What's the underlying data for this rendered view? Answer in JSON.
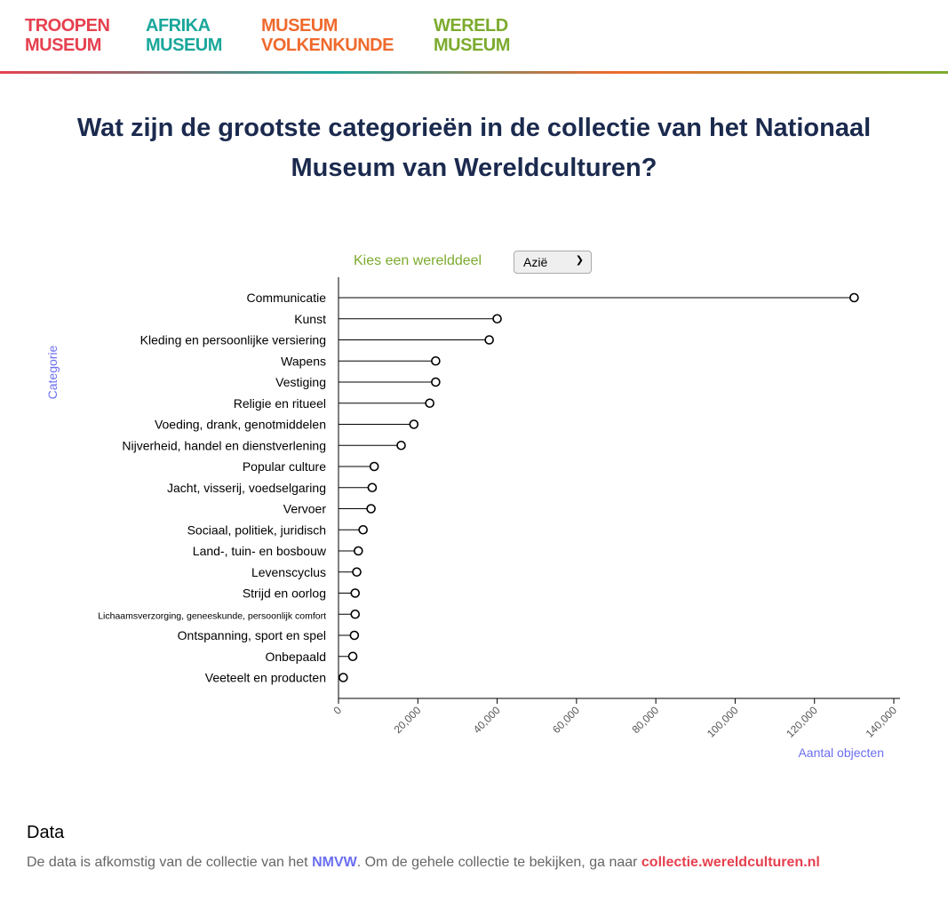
{
  "logos": [
    {
      "line1": "TROOPEN",
      "line2": "MUSEUM",
      "color": "#e6404f"
    },
    {
      "line1": "AFRIKA",
      "line2": "MUSEUM",
      "color": "#1aa79b"
    },
    {
      "line1": "MUSEUM",
      "line2": "VOLKENKUNDE",
      "color": "#ef6a2d"
    },
    {
      "line1": "WERELD",
      "line2": "MUSEUM",
      "color": "#7cab2e"
    }
  ],
  "page": {
    "title": "Wat zijn de grootste categorieën in de collectie van het Nationaal Museum van Wereldculturen?"
  },
  "controls": {
    "label": "Kies een werelddeel",
    "selected": "Azië"
  },
  "chart_data": {
    "type": "lollipop",
    "ylabel": "Categorie",
    "xlabel": "Aantal objecten",
    "xlim": [
      0,
      140000
    ],
    "xticks": [
      "0",
      "20,000",
      "40,000",
      "60,000",
      "80,000",
      "100,000",
      "120,000",
      "140,000"
    ],
    "categories": [
      "Communicatie",
      "Kunst",
      "Kleding en persoonlijke versiering",
      "Wapens",
      "Vestiging",
      "Religie en ritueel",
      "Voeding, drank, genotmiddelen",
      "Nijverheid, handel en dienstverlening",
      "Popular culture",
      "Jacht, visserij, voedselgaring",
      "Vervoer",
      "Sociaal, politiek, juridisch",
      "Land-, tuin- en bosbouw",
      "Levenscyclus",
      "Strijd en oorlog",
      "Lichaamsverzorging, geneeskunde, persoonlijk comfort",
      "Ontspanning, sport en spel",
      "Onbepaald",
      "Veeteelt en producten"
    ],
    "values": [
      130000,
      40000,
      38000,
      24500,
      24500,
      23000,
      19000,
      15800,
      9000,
      8500,
      8200,
      6200,
      5000,
      4600,
      4200,
      4200,
      4000,
      3600,
      1200
    ]
  },
  "footer": {
    "title": "Data",
    "text_before": "De data is afkomstig van de collectie van het ",
    "link1": "NMVW",
    "text_middle": ". Om de gehele collectie te bekijken, ga naar ",
    "link2": "collectie.wereldculturen.nl"
  }
}
